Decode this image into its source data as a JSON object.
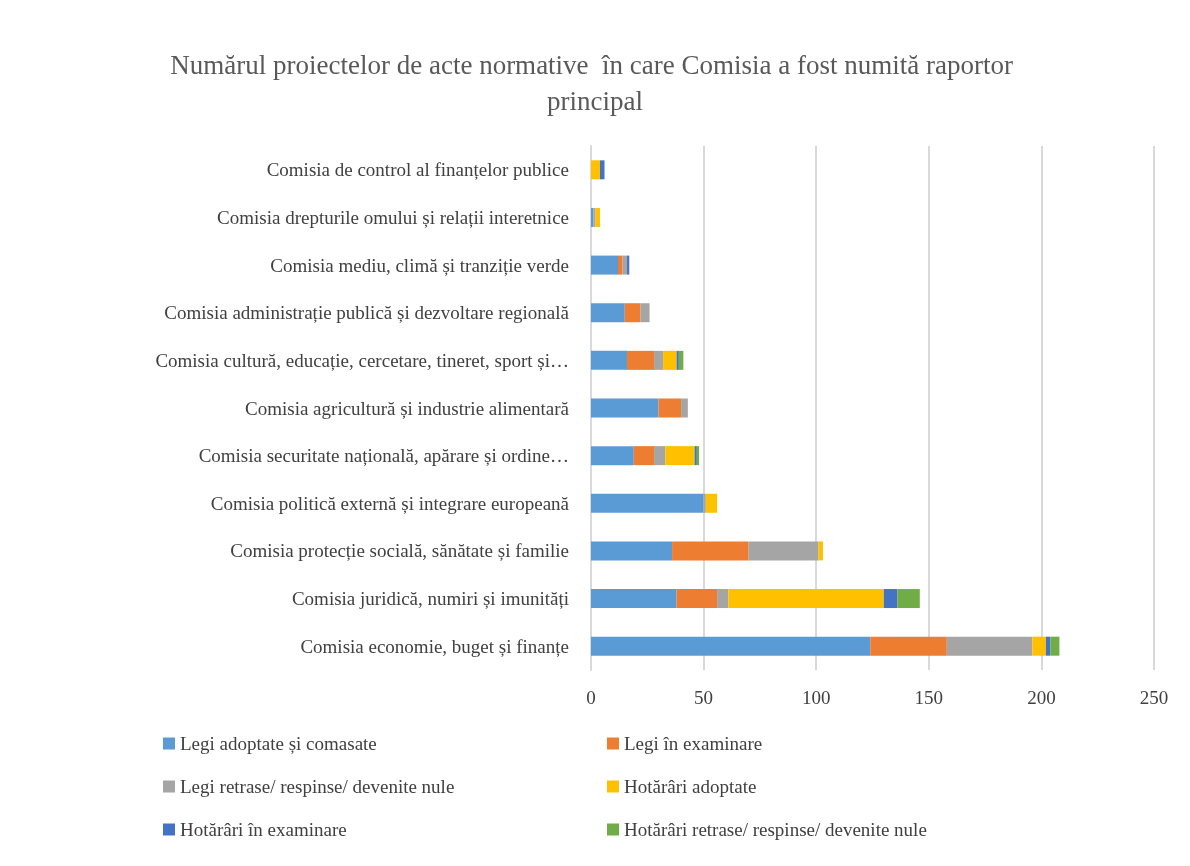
{
  "chart_data": {
    "type": "bar",
    "orientation": "horizontal",
    "stacked": true,
    "title": "Numărul proiectelor de acte normative  în care Comisia a fost numită raportor principal",
    "categories": [
      "Comisia de control al finanțelor publice",
      "Comisia drepturile omului și relații interetnice",
      "Comisia mediu, climă și tranziție verde",
      "Comisia administrație publică și dezvoltare regională",
      "Comisia cultură, educație, cercetare, tineret, sport și…",
      "Comisia agricultură și industrie alimentară",
      "Comisia securitate națională, apărare și ordine…",
      "Comisia politică externă și integrare europeană",
      "Comisia protecție socială, sănătate și familie",
      "Comisia juridică, numiri și imunități",
      "Comisia economie, buget și finanțe"
    ],
    "series": [
      {
        "name": "Legi adoptate și comasate",
        "color": "#5b9bd5",
        "values": [
          0,
          1,
          12,
          15,
          16,
          30,
          19,
          50,
          36,
          38,
          124
        ]
      },
      {
        "name": "Legi în examinare",
        "color": "#ed7d31",
        "values": [
          0,
          0,
          2,
          7,
          12,
          10,
          9,
          0,
          34,
          18,
          34
        ]
      },
      {
        "name": "Legi retrase/ respinse/ devenite nule",
        "color": "#a5a5a5",
        "values": [
          0,
          1,
          2,
          4,
          4,
          3,
          5,
          1,
          31,
          5,
          38
        ]
      },
      {
        "name": "Hotărâri adoptate",
        "color": "#ffc000",
        "values": [
          4,
          2,
          0,
          0,
          6,
          0,
          13,
          5,
          2,
          69,
          6
        ]
      },
      {
        "name": "Hotărâri în examinare",
        "color": "#4472c4",
        "values": [
          2,
          0,
          1,
          0,
          1,
          0,
          1,
          0,
          0,
          6,
          2
        ]
      },
      {
        "name": "Hotărâri retrase/ respinse/ devenite nule",
        "color": "#70ad47",
        "values": [
          0,
          0,
          0,
          0,
          2,
          0,
          1,
          0,
          0,
          10,
          4
        ]
      }
    ],
    "xlim": [
      0,
      250
    ],
    "xticks": [
      0,
      50,
      100,
      150,
      200,
      250
    ],
    "grid": "x",
    "legend": "bottom"
  }
}
